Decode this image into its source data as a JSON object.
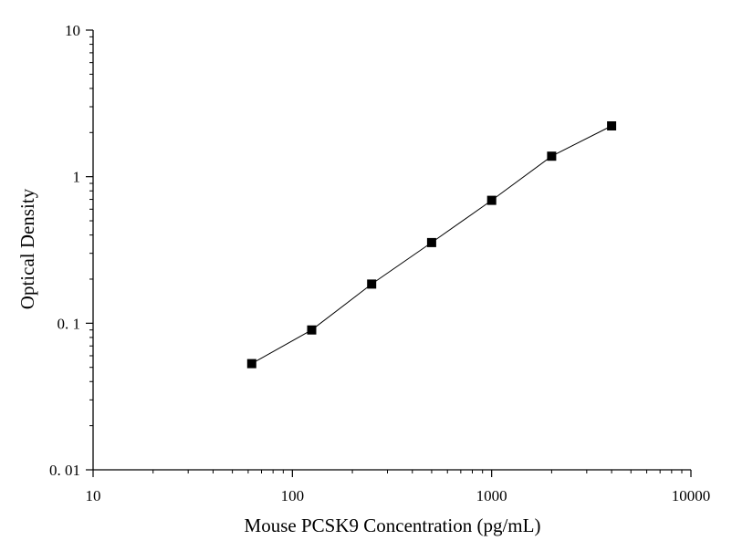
{
  "chart_data": {
    "type": "scatter",
    "title": "",
    "xlabel": "Mouse PCSK9 Concentration (pg/mL)",
    "ylabel": "Optical Density",
    "x_scale": "log",
    "y_scale": "log",
    "xlim": [
      10,
      10000
    ],
    "ylim": [
      0.01,
      10
    ],
    "x_ticks": [
      10,
      100,
      1000,
      10000
    ],
    "x_tick_labels": [
      "10",
      "100",
      "1000",
      "10000"
    ],
    "y_ticks": [
      0.01,
      0.1,
      1,
      10
    ],
    "y_tick_labels": [
      "0. 01",
      "0. 1",
      "1",
      "10"
    ],
    "grid": false,
    "marker": "square",
    "connected": true,
    "color": "#000000",
    "series": [
      {
        "x": [
          62.5,
          125,
          250,
          500,
          1000,
          2000,
          4000
        ],
        "y": [
          0.053,
          0.09,
          0.185,
          0.355,
          0.69,
          1.38,
          2.22
        ]
      }
    ]
  }
}
